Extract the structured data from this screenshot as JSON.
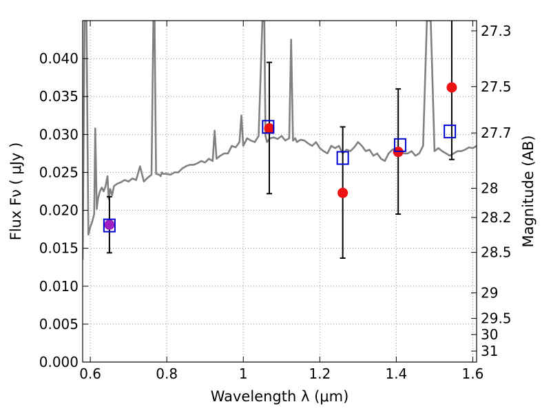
{
  "chart_data": {
    "type": "scatter",
    "xlabel": "Wavelength  λ (μm)",
    "ylabel": "Flux  Fν  ( μJy )",
    "ylabel_right": "Magnitude (AB)",
    "xlim": [
      0.58,
      1.61
    ],
    "ylim": [
      0.0,
      0.045
    ],
    "grid": true,
    "x_ticks": [
      {
        "value": 0.6,
        "label": "0.6"
      },
      {
        "value": 0.8,
        "label": "0.8"
      },
      {
        "value": 1.0,
        "label": "1"
      },
      {
        "value": 1.2,
        "label": "1.2"
      },
      {
        "value": 1.4,
        "label": "1.4"
      },
      {
        "value": 1.6,
        "label": "1.6"
      }
    ],
    "y_ticks": [
      {
        "value": 0.0,
        "label": "0.000"
      },
      {
        "value": 0.005,
        "label": "0.005"
      },
      {
        "value": 0.01,
        "label": "0.010"
      },
      {
        "value": 0.015,
        "label": "0.015"
      },
      {
        "value": 0.02,
        "label": "0.020"
      },
      {
        "value": 0.025,
        "label": "0.025"
      },
      {
        "value": 0.03,
        "label": "0.030"
      },
      {
        "value": 0.035,
        "label": "0.035"
      },
      {
        "value": 0.04,
        "label": "0.040"
      }
    ],
    "mag_ticks": [
      {
        "mag": 27.3,
        "label": "27.3"
      },
      {
        "mag": 27.5,
        "label": "27.5"
      },
      {
        "mag": 27.7,
        "label": "27.7"
      },
      {
        "mag": 28.0,
        "label": "28"
      },
      {
        "mag": 28.2,
        "label": "28.2"
      },
      {
        "mag": 28.5,
        "label": "28.5"
      },
      {
        "mag": 29.0,
        "label": "29"
      },
      {
        "mag": 29.5,
        "label": "29.5"
      },
      {
        "mag": 30.0,
        "label": "30"
      },
      {
        "mag": 31.0,
        "label": "31"
      }
    ],
    "colors": {
      "spectrum": "#808080",
      "observed": "#ee1111",
      "model": "#0000cc",
      "overlap": "#a020c0",
      "errorbar": "#000000",
      "grid": "#888888"
    },
    "series": [
      {
        "marker": "circle",
        "x": [
          0.65,
          1.068,
          1.26,
          1.405,
          1.545
        ],
        "y": [
          0.0181,
          0.0308,
          0.0223,
          0.0277,
          0.0362
        ],
        "yerr_low": [
          0.0144,
          0.0222,
          0.0137,
          0.0195,
          0.0267
        ],
        "yerr_high": [
          0.0218,
          0.0395,
          0.031,
          0.036,
          0.0455
        ]
      },
      {
        "marker": "square",
        "x": [
          0.65,
          1.065,
          1.26,
          1.41,
          1.54
        ],
        "y": [
          0.018,
          0.031,
          0.0269,
          0.0286,
          0.0304
        ]
      },
      {
        "marker": "line",
        "x": [
          0.58,
          0.585,
          0.59,
          0.595,
          0.6,
          0.605,
          0.61,
          0.613,
          0.617,
          0.62,
          0.625,
          0.63,
          0.635,
          0.64,
          0.645,
          0.648,
          0.652,
          0.657,
          0.662,
          0.67,
          0.68,
          0.69,
          0.7,
          0.71,
          0.72,
          0.73,
          0.74,
          0.75,
          0.76,
          0.765,
          0.768,
          0.772,
          0.78,
          0.784,
          0.787,
          0.79,
          0.8,
          0.81,
          0.82,
          0.83,
          0.84,
          0.85,
          0.86,
          0.87,
          0.88,
          0.89,
          0.9,
          0.91,
          0.92,
          0.925,
          0.93,
          0.94,
          0.95,
          0.96,
          0.97,
          0.98,
          0.99,
          0.995,
          1.0,
          1.005,
          1.01,
          1.02,
          1.03,
          1.04,
          1.05,
          1.055,
          1.058,
          1.062,
          1.07,
          1.08,
          1.09,
          1.1,
          1.11,
          1.12,
          1.125,
          1.13,
          1.136,
          1.14,
          1.15,
          1.16,
          1.17,
          1.18,
          1.19,
          1.2,
          1.21,
          1.22,
          1.23,
          1.24,
          1.25,
          1.26,
          1.27,
          1.28,
          1.29,
          1.3,
          1.31,
          1.32,
          1.33,
          1.34,
          1.35,
          1.36,
          1.37,
          1.38,
          1.39,
          1.4,
          1.41,
          1.42,
          1.43,
          1.44,
          1.45,
          1.46,
          1.47,
          1.48,
          1.49,
          1.5,
          1.51,
          1.52,
          1.53,
          1.54,
          1.55,
          1.56,
          1.57,
          1.58,
          1.59,
          1.6,
          1.61
        ],
        "y": [
          0.0135,
          0.045,
          0.045,
          0.0168,
          0.0178,
          0.0185,
          0.0195,
          0.0308,
          0.0202,
          0.0215,
          0.0225,
          0.023,
          0.0225,
          0.0232,
          0.0245,
          0.0215,
          0.0228,
          0.022,
          0.0232,
          0.0235,
          0.0237,
          0.024,
          0.0238,
          0.0242,
          0.024,
          0.0258,
          0.0238,
          0.0243,
          0.0247,
          0.045,
          0.045,
          0.0248,
          0.0247,
          0.0245,
          0.025,
          0.0248,
          0.0248,
          0.0247,
          0.025,
          0.025,
          0.0255,
          0.0258,
          0.026,
          0.026,
          0.0262,
          0.0265,
          0.0263,
          0.0268,
          0.0265,
          0.0305,
          0.0268,
          0.0272,
          0.0275,
          0.0275,
          0.0285,
          0.0283,
          0.029,
          0.0325,
          0.0285,
          0.029,
          0.0295,
          0.0292,
          0.029,
          0.0298,
          0.045,
          0.045,
          0.0298,
          0.029,
          0.0295,
          0.0296,
          0.0294,
          0.0298,
          0.0292,
          0.0295,
          0.0425,
          0.0292,
          0.0295,
          0.029,
          0.0293,
          0.0292,
          0.0288,
          0.0285,
          0.029,
          0.0282,
          0.0278,
          0.0275,
          0.0285,
          0.0282,
          0.0285,
          0.0275,
          0.028,
          0.0278,
          0.0283,
          0.029,
          0.0285,
          0.0278,
          0.028,
          0.0272,
          0.0275,
          0.0268,
          0.0265,
          0.0275,
          0.028,
          0.0282,
          0.0278,
          0.0275,
          0.0275,
          0.0278,
          0.0272,
          0.0275,
          0.0285,
          0.045,
          0.045,
          0.0278,
          0.0282,
          0.0278,
          0.0275,
          0.0272,
          0.0275,
          0.0278,
          0.0278,
          0.028,
          0.0283,
          0.0282,
          0.0285
        ]
      }
    ]
  }
}
